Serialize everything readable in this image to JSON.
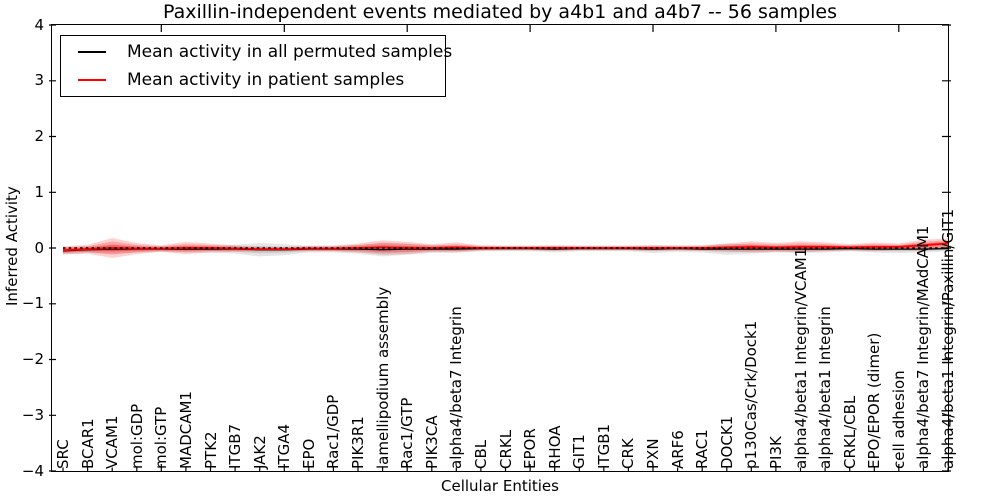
{
  "figure": {
    "title": "Paxillin-independent events mediated by a4b1 and a4b7 -- 56 samples",
    "xlabel": "Cellular Entities",
    "ylabel": "Inferred Activity"
  },
  "legend": {
    "position": "upper left",
    "entries": [
      {
        "label": "Mean activity in all permuted samples",
        "color": "#000000"
      },
      {
        "label": "Mean activity in patient samples",
        "color": "#ff0000"
      }
    ]
  },
  "colors": {
    "patient_line": "#ff0000",
    "permuted_line": "#000000",
    "patient_band": "rgba(255,0,0,0.25)",
    "permuted_band": "rgba(0,0,0,0.10)",
    "background": "#ffffff"
  },
  "chart_data": {
    "type": "line",
    "title": "Paxillin-independent events mediated by a4b1 and a4b7 -- 56 samples",
    "xlabel": "Cellular Entities",
    "ylabel": "Inferred Activity",
    "ylim": [
      -4,
      4
    ],
    "yticks": [
      4,
      3,
      2,
      1,
      0,
      -1,
      -2,
      -3,
      -4
    ],
    "xticks_shown_at_positions": [
      5,
      10,
      15,
      20,
      25,
      30,
      35
    ],
    "grid": false,
    "legend_position": "upper left",
    "zero_reference_line": "black dotted line at y=0",
    "categories": [
      "SRC",
      "BCAR1",
      "VCAM1",
      "mol:GDP",
      "mol:GTP",
      "MADCAM1",
      "PTK2",
      "ITGB7",
      "JAK2",
      "ITGA4",
      "EPO",
      "Rac1/GDP",
      "PIK3R1",
      "lamellipodium assembly",
      "Rac1/GTP",
      "PIK3CA",
      "alpha4/beta7 Integrin",
      "CBL",
      "CRKL",
      "EPOR",
      "RHOA",
      "GIT1",
      "ITGB1",
      "CRK",
      "PXN",
      "ARF6",
      "RAC1",
      "DOCK1",
      "p130Cas/Crk/Dock1",
      "PI3K",
      "alpha4/beta1 Integrin/VCAM1",
      "alpha4/beta1 Integrin",
      "CRKL/CBL",
      "EPO/EPOR (dimer)",
      "cell adhesion",
      "alpha4/beta7 Integrin/MAdCAM1",
      "alpha4/beta1 Integrin/Paxillin/GIT1"
    ],
    "series": [
      {
        "name": "Mean activity in all permuted samples",
        "role": "line",
        "color": "#000000",
        "values": [
          -0.05,
          -0.03,
          -0.02,
          -0.02,
          -0.02,
          -0.02,
          -0.02,
          -0.02,
          -0.03,
          -0.03,
          -0.02,
          -0.02,
          -0.02,
          -0.03,
          -0.02,
          -0.02,
          -0.02,
          -0.01,
          -0.01,
          -0.01,
          -0.02,
          -0.01,
          -0.01,
          -0.01,
          -0.02,
          -0.01,
          -0.02,
          -0.02,
          -0.02,
          -0.02,
          -0.02,
          -0.02,
          -0.01,
          -0.02,
          -0.02,
          -0.02,
          -0.01
        ]
      },
      {
        "name": "Mean activity in patient samples",
        "role": "line",
        "color": "#ff0000",
        "values": [
          -0.04,
          -0.02,
          0,
          -0.01,
          -0.01,
          0,
          0,
          -0.01,
          -0.02,
          -0.02,
          -0.01,
          -0.01,
          0,
          0.01,
          0,
          0,
          0.01,
          0,
          0,
          0,
          0,
          0,
          0,
          0,
          0,
          0,
          0,
          0.01,
          0.02,
          0.01,
          0.02,
          0.02,
          0.01,
          0.02,
          0.02,
          0.05,
          0.08
        ]
      },
      {
        "name": "Permuted samples band half-width (std)",
        "role": "band",
        "color": "rgba(0,0,0,0.10)",
        "values": [
          0.07,
          0.06,
          0.08,
          0.06,
          0.05,
          0.06,
          0.06,
          0.08,
          0.12,
          0.1,
          0.06,
          0.06,
          0.08,
          0.12,
          0.1,
          0.07,
          0.06,
          0.05,
          0.05,
          0.05,
          0.06,
          0.05,
          0.05,
          0.05,
          0.07,
          0.06,
          0.06,
          0.1,
          0.08,
          0.06,
          0.07,
          0.06,
          0.05,
          0.06,
          0.07,
          0.06,
          0.05
        ]
      },
      {
        "name": "Patient samples band half-width (std)",
        "role": "band",
        "color": "rgba(255,0,0,0.25)",
        "values": [
          0.07,
          0.08,
          0.18,
          0.1,
          0.06,
          0.11,
          0.08,
          0.06,
          0.04,
          0.04,
          0.05,
          0.05,
          0.08,
          0.13,
          0.11,
          0.07,
          0.09,
          0.05,
          0.04,
          0.04,
          0.05,
          0.04,
          0.04,
          0.04,
          0.05,
          0.04,
          0.05,
          0.07,
          0.1,
          0.08,
          0.1,
          0.08,
          0.06,
          0.08,
          0.06,
          0.1,
          0.09
        ]
      }
    ]
  }
}
